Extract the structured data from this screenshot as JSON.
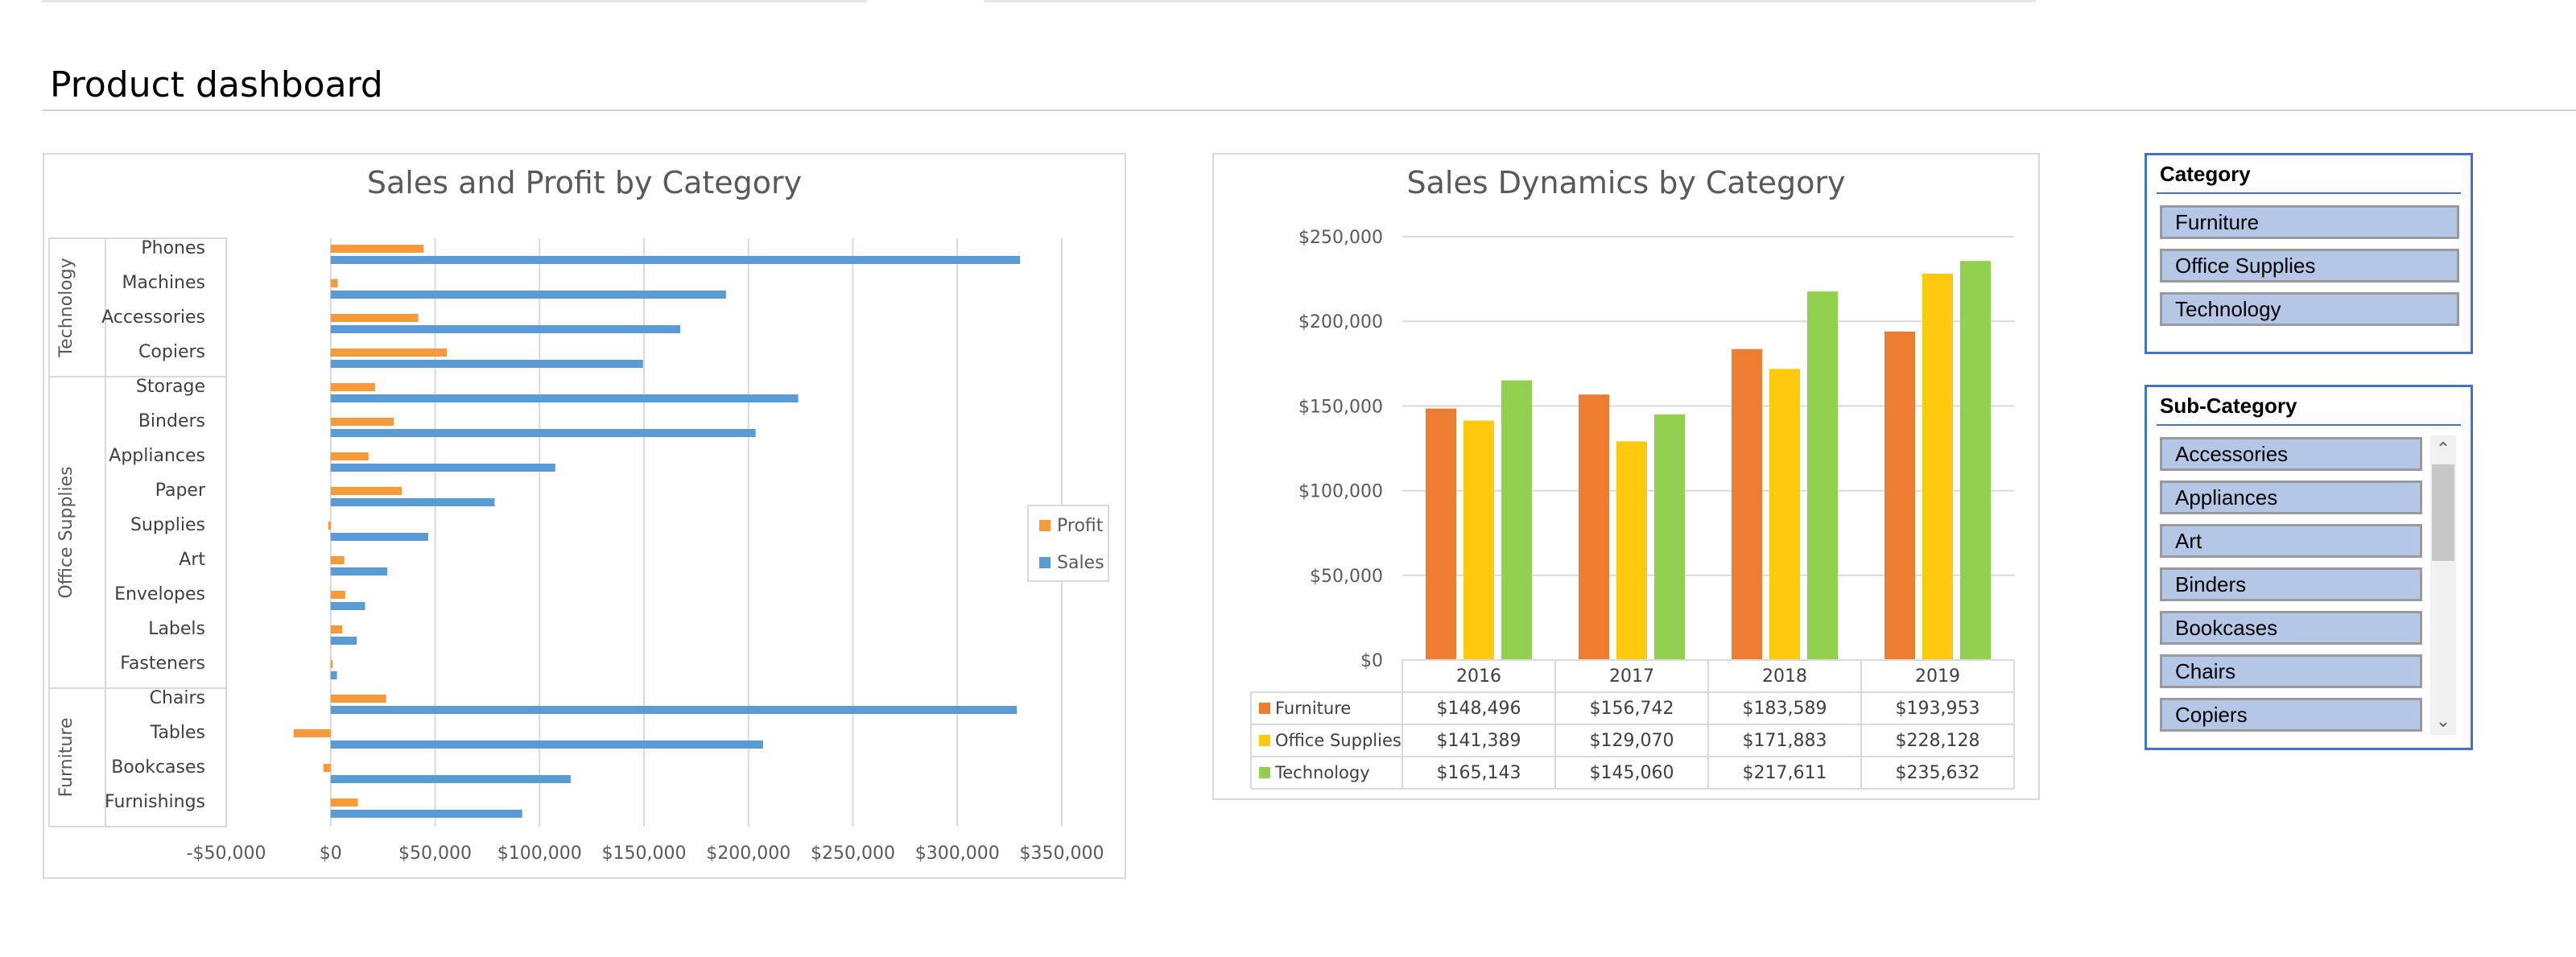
{
  "page": {
    "title": "Product dashboard"
  },
  "colors": {
    "profit": "#f79b3a",
    "sales": "#5b9bd5",
    "furniture": "#ed7d31",
    "office_supplies": "#ffc90e",
    "technology": "#92d050",
    "slicer_item": "#b4c7e7",
    "slicer_border": "#4472c4"
  },
  "chart_data": [
    {
      "type": "bar",
      "orientation": "horizontal",
      "title": "Sales and Profit by Category",
      "xlabel": "",
      "ylabel": "",
      "xlim": [
        -50000,
        350000
      ],
      "x_ticks": [
        "-$50,000",
        "$0",
        "$50,000",
        "$100,000",
        "$150,000",
        "$200,000",
        "$250,000",
        "$300,000",
        "$350,000"
      ],
      "grid": true,
      "legend": {
        "position": "right",
        "entries": [
          "Profit",
          "Sales"
        ]
      },
      "groups": [
        {
          "name": "Technology",
          "categories": [
            "Phones",
            "Machines",
            "Accessories",
            "Copiers"
          ]
        },
        {
          "name": "Office Supplies",
          "categories": [
            "Storage",
            "Binders",
            "Appliances",
            "Paper",
            "Supplies",
            "Art",
            "Envelopes",
            "Labels",
            "Fasteners"
          ]
        },
        {
          "name": "Furniture",
          "categories": [
            "Chairs",
            "Tables",
            "Bookcases",
            "Furnishings"
          ]
        }
      ],
      "categories": [
        "Phones",
        "Machines",
        "Accessories",
        "Copiers",
        "Storage",
        "Binders",
        "Appliances",
        "Paper",
        "Supplies",
        "Art",
        "Envelopes",
        "Labels",
        "Fasteners",
        "Chairs",
        "Tables",
        "Bookcases",
        "Furnishings"
      ],
      "series": [
        {
          "name": "Profit",
          "values": [
            44516,
            3385,
            41937,
            55618,
            21279,
            30222,
            18138,
            34054,
            -1189,
            6528,
            6964,
            5546,
            950,
            26590,
            -17725,
            -3473,
            13059
          ]
        },
        {
          "name": "Sales",
          "values": [
            330007,
            189239,
            167380,
            149528,
            223844,
            203413,
            107532,
            78479,
            46674,
            27119,
            16476,
            12486,
            3024,
            328449,
            206966,
            114880,
            91705
          ]
        }
      ]
    },
    {
      "type": "bar",
      "title": "Sales Dynamics by Category",
      "xlabel": "",
      "ylabel": "",
      "ylim": [
        0,
        250000
      ],
      "y_ticks": [
        "$0",
        "$50,000",
        "$100,000",
        "$150,000",
        "$200,000",
        "$250,000"
      ],
      "grid": true,
      "categories": [
        "2016",
        "2017",
        "2018",
        "2019"
      ],
      "series": [
        {
          "name": "Furniture",
          "values": [
            148496,
            156742,
            183589,
            193953
          ],
          "labels": [
            "$148,496",
            "$156,742",
            "$183,589",
            "$193,953"
          ]
        },
        {
          "name": "Office Supplies",
          "values": [
            141389,
            129070,
            171883,
            228128
          ],
          "labels": [
            "$141,389",
            "$129,070",
            "$171,883",
            "$228,128"
          ]
        },
        {
          "name": "Technology",
          "values": [
            165143,
            145060,
            217611,
            235632
          ],
          "labels": [
            "$165,143",
            "$145,060",
            "$217,611",
            "$235,632"
          ]
        }
      ]
    }
  ],
  "slicers": {
    "category": {
      "title": "Category",
      "items": [
        "Furniture",
        "Office Supplies",
        "Technology"
      ]
    },
    "subcategory": {
      "title": "Sub-Category",
      "items": [
        "Accessories",
        "Appliances",
        "Art",
        "Binders",
        "Bookcases",
        "Chairs",
        "Copiers"
      ],
      "scroll_up_icon": "chevron-up-icon",
      "scroll_down_icon": "chevron-down-icon"
    }
  }
}
